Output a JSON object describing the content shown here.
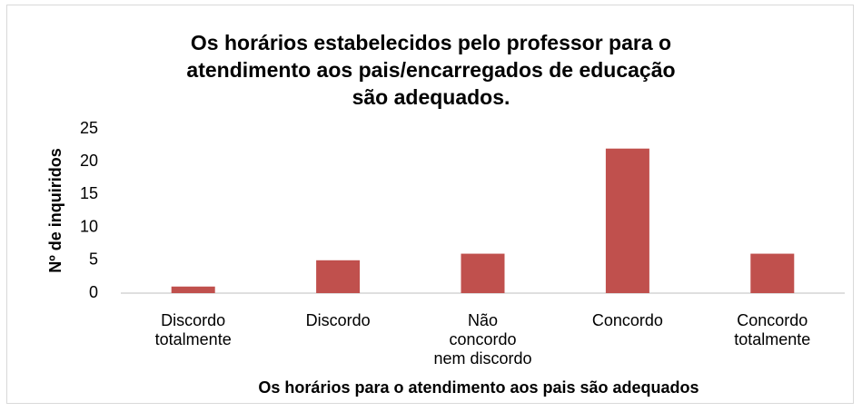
{
  "chart_data": {
    "type": "bar",
    "title": "Os horários estabelecidos pelo professor para o\natendimento aos pais/encarregados de educação\nsão adequados.",
    "x_label": "Os horários  para o atendimento aos pais são adequados",
    "y_label": "Nº de inquiridos",
    "categories": [
      "Discordo\ntotalmente",
      "Discordo",
      "Não\nconcordo\nnem discordo",
      "Concordo",
      "Concordo\ntotalmente"
    ],
    "values": [
      1,
      5,
      6,
      22,
      6
    ],
    "color": "#c0504d",
    "ylim": [
      0,
      25
    ],
    "yticks": [
      0,
      5,
      10,
      15,
      20,
      25
    ],
    "grid": false
  }
}
